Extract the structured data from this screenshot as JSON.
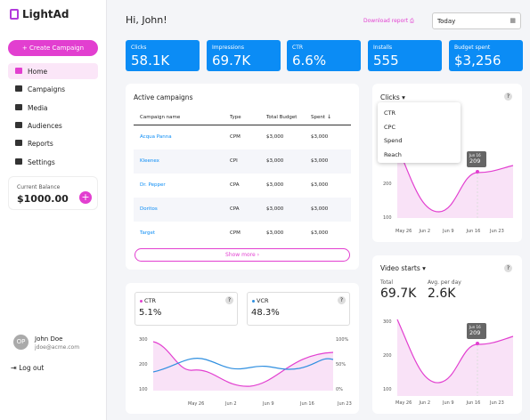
{
  "sidebar": {
    "logo": "LightAd",
    "create_button": "Create Campaign",
    "nav": [
      "Home",
      "Campaigns",
      "Media",
      "Audiences",
      "Reports",
      "Settings"
    ],
    "balance": {
      "label": "Current Balance",
      "amount": "$1000.00"
    },
    "user": {
      "initials": "OP",
      "name": "John Doe",
      "email": "jdoe@acme.com"
    },
    "logout": "Log out"
  },
  "header": {
    "greeting": "Hi, John!",
    "download": "Download report",
    "date_select": "Today"
  },
  "kpis": [
    {
      "label": "Clicks",
      "value": "58.1K"
    },
    {
      "label": "Impressions",
      "value": "69.7K"
    },
    {
      "label": "CTR",
      "value": "6.6%"
    },
    {
      "label": "Installs",
      "value": "555"
    },
    {
      "label": "Budget spent",
      "value": "$3,256"
    }
  ],
  "campaigns": {
    "title": "Active campaigns",
    "columns": [
      "Campaign name",
      "Type",
      "Total Budget",
      "Spent"
    ],
    "rows": [
      [
        "Acqua Panna",
        "CPM",
        "$3,000",
        "$3,000"
      ],
      [
        "Kleenex",
        "CPI",
        "$3,000",
        "$3,000"
      ],
      [
        "Dr. Pepper",
        "CPA",
        "$3,000",
        "$3,000"
      ],
      [
        "Doritos",
        "CPA",
        "$3,000",
        "$3,000"
      ],
      [
        "Target",
        "CPM",
        "$3,000",
        "$3,000"
      ]
    ],
    "show_more": "Show more"
  },
  "ctr_vcr": {
    "metrics": [
      {
        "name": "CTR",
        "value": "5.1%"
      },
      {
        "name": "VCR",
        "value": "48.3%"
      }
    ],
    "yticks": [
      "300",
      "200",
      "100"
    ],
    "y2ticks": [
      "100%",
      "50%",
      "0%"
    ],
    "xticks": [
      "May 26",
      "Jun 2",
      "Jun 9",
      "Jun 16",
      "Jun 23"
    ]
  },
  "clicks": {
    "title": "Clicks",
    "menu": [
      "CTR",
      "CPC",
      "Spend",
      "Reach"
    ],
    "tooltip": {
      "date": "Jun 16",
      "value": "209"
    },
    "yticks": [
      "200",
      "100"
    ],
    "xticks": [
      "May 26",
      "Jun 2",
      "Jun 9",
      "Jun 16",
      "Jun 23"
    ]
  },
  "video": {
    "title": "Video starts",
    "total": {
      "label": "Total",
      "value": "69.7K"
    },
    "avg": {
      "label": "Avg. per day",
      "value": "2.6K"
    },
    "tooltip": {
      "date": "Jun 16",
      "value": "209"
    },
    "yticks": [
      "300",
      "200",
      "100"
    ],
    "xticks": [
      "May 26",
      "Jun 2",
      "Jun 9",
      "Jun 16",
      "Jun 23"
    ]
  }
}
